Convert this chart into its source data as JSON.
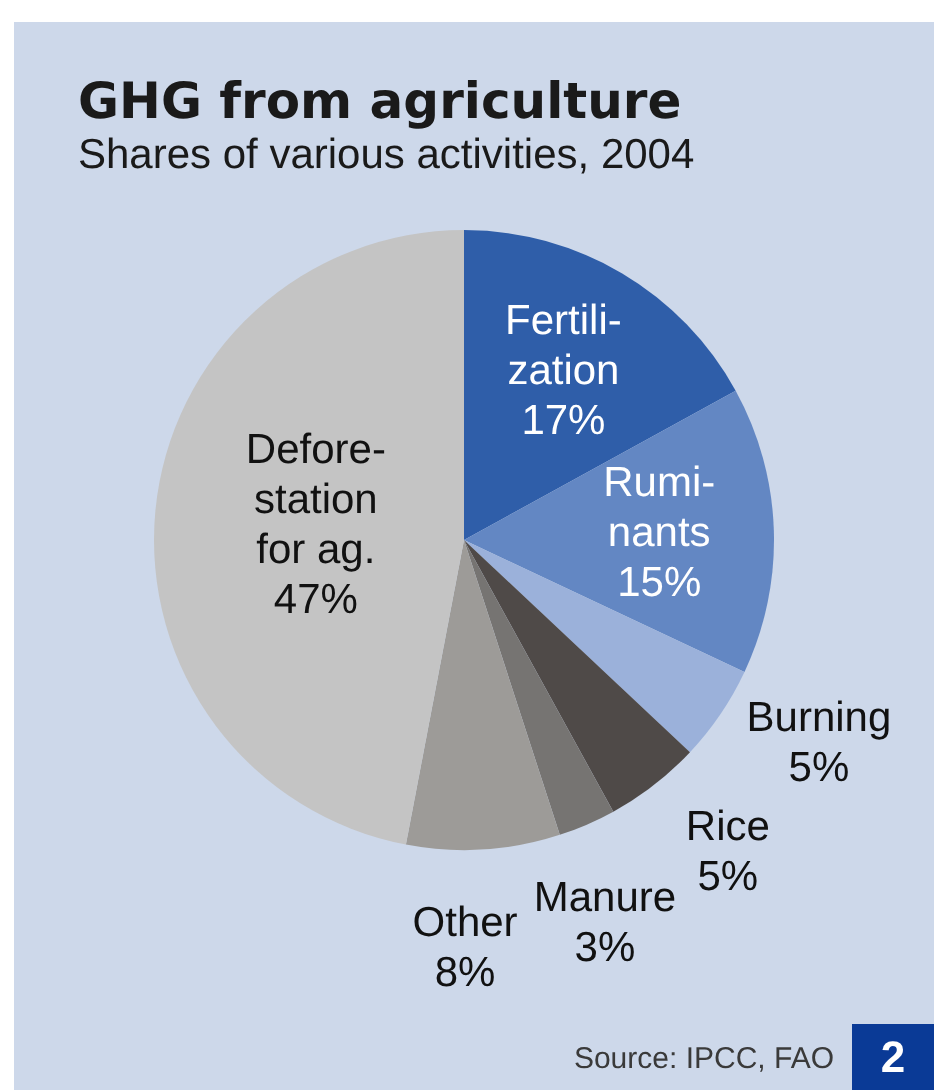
{
  "chart_data": {
    "type": "pie",
    "title": "GHG from agriculture",
    "subtitle": "Shares of various activities, 2004",
    "categories": [
      "Fertili-\nzation",
      "Rumi-\nnants",
      "Burning",
      "Rice",
      "Manure",
      "Other",
      "Defore-\nstation\nfor ag."
    ],
    "values": [
      17,
      15,
      5,
      5,
      3,
      8,
      47
    ],
    "colors": [
      "#2f5ea9",
      "#6387c3",
      "#9bb1da",
      "#4f4a48",
      "#767472",
      "#9d9b98",
      "#c4c4c4"
    ],
    "value_labels": [
      "17%",
      "15%",
      "5%",
      "5%",
      "3%",
      "8%",
      "47%"
    ],
    "annotations": [
      "Source: IPCC, FAO",
      "2"
    ]
  }
}
